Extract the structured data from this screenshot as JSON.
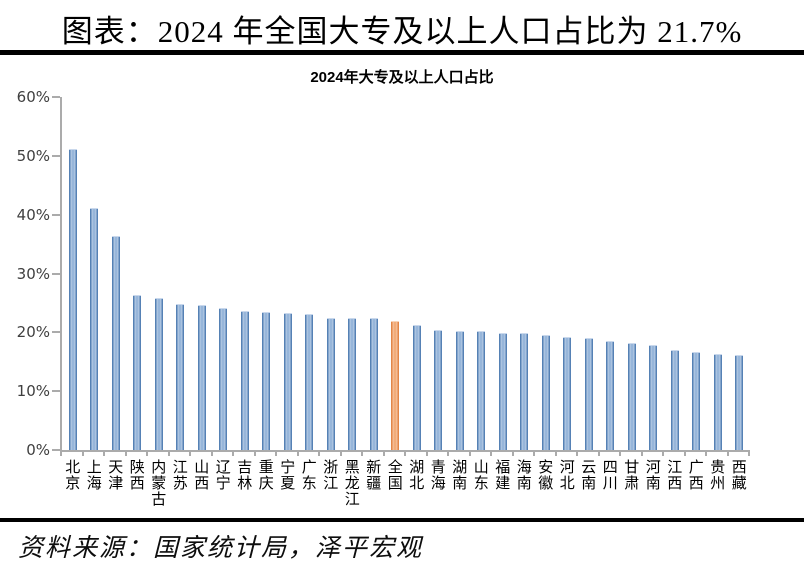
{
  "page": {
    "header_title": "图表：2024 年全国大专及以上人口占比为 21.7%",
    "source_note": "资料来源：国家统计局，泽平宏观"
  },
  "chart_data": {
    "type": "bar",
    "title": "2024年大专及以上人口占比",
    "categories": [
      "北京",
      "上海",
      "天津",
      "陕西",
      "内蒙古",
      "江苏",
      "山西",
      "辽宁",
      "吉林",
      "重庆",
      "宁夏",
      "广东",
      "浙江",
      "黑龙江",
      "新疆",
      "全国",
      "湖北",
      "青海",
      "湖南",
      "山东",
      "福建",
      "海南",
      "安徽",
      "河北",
      "云南",
      "四川",
      "甘肃",
      "河南",
      "江西",
      "广西",
      "贵州",
      "西藏"
    ],
    "values": [
      51.0,
      41.0,
      36.2,
      26.2,
      25.6,
      24.7,
      24.5,
      24.0,
      23.5,
      23.3,
      23.2,
      22.9,
      22.3,
      22.3,
      22.3,
      21.7,
      21.1,
      20.2,
      20.1,
      20.1,
      19.7,
      19.7,
      19.3,
      19.0,
      18.9,
      18.4,
      18.0,
      17.6,
      16.9,
      16.5,
      16.1,
      15.9
    ],
    "highlight_category": "全国",
    "highlight_value": 21.7,
    "ylim": [
      0,
      60
    ],
    "ytick_step": 10,
    "ytick_labels": [
      "0%",
      "10%",
      "20%",
      "30%",
      "40%",
      "50%",
      "60%"
    ],
    "grid": false,
    "legend": "none",
    "xlabel": "",
    "ylabel": "",
    "colors": {
      "bar_blue": "#4f81bd",
      "bar_blue_edge": "#3e6fa9",
      "bar_orange": "#efa066",
      "bar_orange_edge": "#dd7732",
      "axis_gray": "#ababab",
      "text_black": "#000000"
    }
  }
}
